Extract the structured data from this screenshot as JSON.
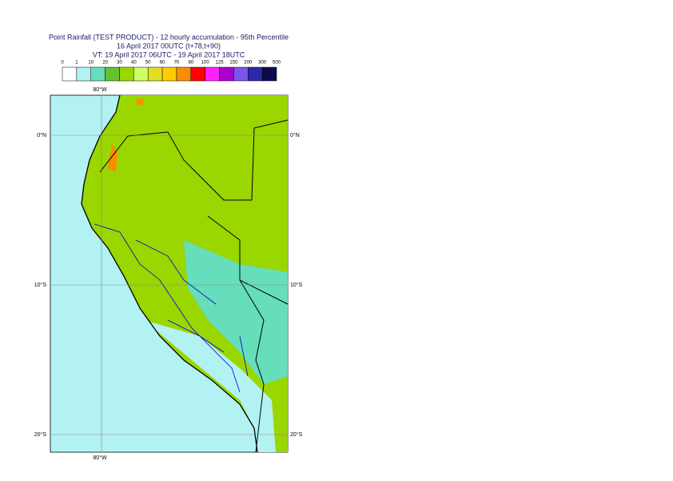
{
  "header": {
    "title": "Point Rainfall (TEST PRODUCT) - 12 hourly accumulation - 95th Percentile",
    "run": "16 April 2017 00UTC (t+78,t+90)",
    "valid": "VT: 19 April 2017 06UTC - 19 April 2017 18UTC"
  },
  "legend": {
    "labels": [
      "0",
      "1",
      "10",
      "20",
      "30",
      "40",
      "50",
      "60",
      "70",
      "80",
      "100",
      "125",
      "150",
      "200",
      "300",
      "500"
    ],
    "colors": [
      "#ffffff",
      "#b3f2f2",
      "#66ddbb",
      "#66c22e",
      "#9ad600",
      "#ccff66",
      "#e0e022",
      "#ffcc00",
      "#ff8c00",
      "#ff0000",
      "#ff22ff",
      "#aa00cc",
      "#7b55ee",
      "#2a2aa8",
      "#0b0b4d"
    ]
  },
  "map": {
    "lon_labels": [
      "80°W",
      "80°W"
    ],
    "lat_labels": [
      "0°N",
      "10°S",
      "20°S"
    ]
  }
}
